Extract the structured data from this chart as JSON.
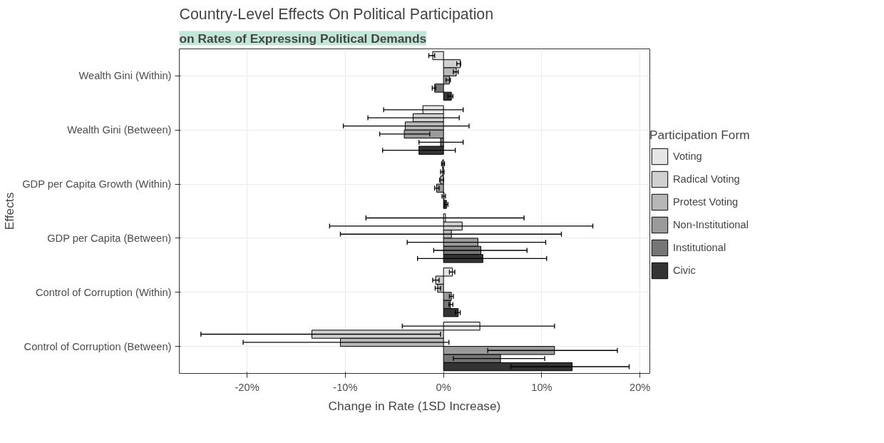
{
  "chart_data": {
    "type": "bar",
    "orientation": "horizontal",
    "title": "Country-Level Effects On Political Participation",
    "xlabel": "Change in Rate (1SD Increase)",
    "ylabel": "Effects",
    "legend_title": "Participation Form",
    "annotations": [
      "on Rates of Expressing Political Demands"
    ],
    "categories": [
      "Wealth Gini (Within)",
      "Wealth Gini (Between)",
      "GDP per Capita Growth (Within)",
      "GDP per Capita (Between)",
      "Control of Corruption (Within)",
      "Control of Corruption (Between)"
    ],
    "series": [
      {
        "name": "Voting",
        "color": "#e6e6e6",
        "values": [
          -1.1,
          -2.1,
          -0.1,
          0.2,
          0.9,
          3.7
        ],
        "errors": [
          [
            -1.5,
            -0.9
          ],
          [
            -6.1,
            2.0
          ],
          [
            -0.2,
            0.1
          ],
          [
            -7.9,
            8.2
          ],
          [
            0.6,
            1.15
          ],
          [
            -4.2,
            11.3
          ]
        ]
      },
      {
        "name": "Radical Voting",
        "color": "#d0d0d0",
        "values": [
          1.7,
          -3.1,
          -0.1,
          1.9,
          -0.8,
          -13.4
        ],
        "errors": [
          [
            1.35,
            1.75
          ],
          [
            -7.7,
            1.6
          ],
          [
            -0.3,
            0.05
          ],
          [
            -11.6,
            15.2
          ],
          [
            -1.1,
            -0.45
          ],
          [
            -24.7,
            -0.3
          ]
        ]
      },
      {
        "name": "Protest Voting",
        "color": "#b7b7b7",
        "values": [
          1.3,
          -3.9,
          -0.3,
          0.8,
          -0.6,
          -10.5
        ],
        "errors": [
          [
            1.0,
            1.5
          ],
          [
            -10.2,
            2.6
          ],
          [
            -0.4,
            0.0
          ],
          [
            -10.5,
            12.0
          ],
          [
            -0.85,
            -0.3
          ],
          [
            -20.4,
            0.55
          ]
        ]
      },
      {
        "name": "Non-Institutional",
        "color": "#9b9b9b",
        "values": [
          0.6,
          -4.0,
          -0.7,
          3.5,
          0.8,
          11.3
        ],
        "errors": [
          [
            0.25,
            0.7
          ],
          [
            -6.5,
            -1.4
          ],
          [
            -0.9,
            -0.45
          ],
          [
            -3.7,
            10.4
          ],
          [
            0.6,
            1.0
          ],
          [
            4.5,
            17.7
          ]
        ]
      },
      {
        "name": "Institutional",
        "color": "#767676",
        "values": [
          -0.9,
          -0.3,
          0.05,
          3.8,
          0.7,
          5.8
        ],
        "errors": [
          [
            -1.15,
            -0.8
          ],
          [
            -2.5,
            2.0
          ],
          [
            -0.15,
            0.2
          ],
          [
            -1.0,
            8.5
          ],
          [
            0.55,
            0.95
          ],
          [
            1.0,
            10.3
          ]
        ]
      },
      {
        "name": "Civic",
        "color": "#333333",
        "values": [
          0.8,
          -2.5,
          0.3,
          4.0,
          1.5,
          13.1
        ],
        "errors": [
          [
            0.45,
            0.95
          ],
          [
            -6.2,
            1.2
          ],
          [
            0.1,
            0.45
          ],
          [
            -2.65,
            10.5
          ],
          [
            1.2,
            1.7
          ],
          [
            6.85,
            18.9
          ]
        ]
      }
    ],
    "xlim": [
      -26.9,
      21.0
    ],
    "xticks": [
      {
        "value": -20,
        "label": "-20%"
      },
      {
        "value": -10,
        "label": "-10%"
      },
      {
        "value": 0,
        "label": "0%"
      },
      {
        "value": 10,
        "label": "10%"
      },
      {
        "value": 20,
        "label": "20%"
      }
    ],
    "grid": true,
    "legend": "right"
  }
}
